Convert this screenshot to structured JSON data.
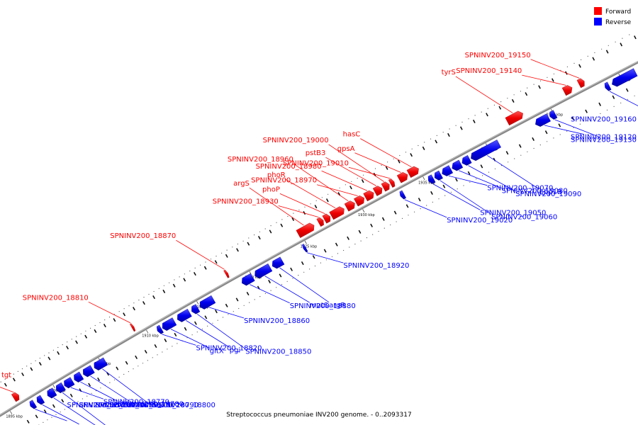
{
  "caption": "Streptococcus pneumoniae INV200 genome. - 0..2093317",
  "legend": [
    {
      "label": "Forward",
      "color": "#ff0000"
    },
    {
      "label": "Reverse",
      "color": "#0000ff"
    }
  ],
  "colors": {
    "forward": "#ff0000",
    "reverse": "#0000ff",
    "backbone": "#888888"
  },
  "position_range_kbp": [
    1893,
    1952
  ],
  "scale_labels": [
    {
      "kbp": 1895,
      "text": "1895 kbp"
    },
    {
      "kbp": 1900,
      "text": "1900 kbp"
    },
    {
      "kbp": 1905,
      "text": "1905 kbp"
    },
    {
      "kbp": 1910,
      "text": "1910 kbp"
    },
    {
      "kbp": 1915,
      "text": "1915 kbp"
    },
    {
      "kbp": 1920,
      "text": "1920 kbp"
    },
    {
      "kbp": 1925,
      "text": "1925 kbp"
    },
    {
      "kbp": 1930,
      "text": "1930 kbp"
    },
    {
      "kbp": 1935,
      "text": "1935 kbp"
    },
    {
      "kbp": 1940,
      "text": "1940 kbp"
    },
    {
      "kbp": 1945,
      "text": "1945 kbp"
    },
    {
      "kbp": 1950,
      "text": "1950 kbp"
    }
  ],
  "genes": [
    {
      "name": "tgt",
      "strand": "forward",
      "start": 1896.0,
      "end": 1896.6
    },
    {
      "name": "SPNINV200_18730",
      "strand": "reverse",
      "start": 1897.0,
      "end": 1897.5
    },
    {
      "name": "SPNINV200_18740",
      "strand": "reverse",
      "start": 1897.8,
      "end": 1898.4
    },
    {
      "name": "SPNINV200_18750",
      "strand": "reverse",
      "start": 1899.0,
      "end": 1899.8
    },
    {
      "name": "SPNINV200_18760",
      "strand": "reverse",
      "start": 1900.0,
      "end": 1900.8
    },
    {
      "name": "SPNINV200_18770",
      "strand": "reverse",
      "start": 1900.9,
      "end": 1901.8
    },
    {
      "name": "SPNINV200_18780",
      "strand": "reverse",
      "start": 1902.0,
      "end": 1902.8
    },
    {
      "name": "SPNINV200_18790",
      "strand": "reverse",
      "start": 1903.0,
      "end": 1904.0
    },
    {
      "name": "SPNINV200_18800",
      "strand": "reverse",
      "start": 1904.2,
      "end": 1905.4
    },
    {
      "name": "SPNINV200_18810",
      "strand": "forward",
      "start": 1909.0,
      "end": 1909.2
    },
    {
      "name": "SPNINV200_18820",
      "strand": "reverse",
      "start": 1910.8,
      "end": 1911.2
    },
    {
      "name": "gltX",
      "strand": "reverse",
      "start": 1911.3,
      "end": 1912.5
    },
    {
      "name": "pgi",
      "strand": "reverse",
      "start": 1912.8,
      "end": 1914.0
    },
    {
      "name": "SPNINV200_18850",
      "strand": "reverse",
      "start": 1914.2,
      "end": 1914.8
    },
    {
      "name": "SPNINV200_18860",
      "strand": "reverse",
      "start": 1915.0,
      "end": 1916.3
    },
    {
      "name": "SPNINV200_18870",
      "strand": "forward",
      "start": 1918.2,
      "end": 1918.4
    },
    {
      "name": "SPNINV200_18880",
      "strand": "reverse",
      "start": 1919.0,
      "end": 1920.0
    },
    {
      "name": "mutS",
      "strand": "reverse",
      "start": 1920.2,
      "end": 1921.6
    },
    {
      "name": "argR",
      "strand": "reverse",
      "start": 1921.8,
      "end": 1922.7
    },
    {
      "name": "SPNINV200_18920",
      "strand": "reverse",
      "start": 1924.6,
      "end": 1924.8
    },
    {
      "name": "argS",
      "strand": "forward",
      "start": 1924.8,
      "end": 1926.2
    },
    {
      "name": "SPNINV200_18930",
      "strand": "forward",
      "start": 1926.6,
      "end": 1927.0
    },
    {
      "name": "phoP",
      "strand": "forward",
      "start": 1927.1,
      "end": 1927.6
    },
    {
      "name": "phoR",
      "strand": "forward",
      "start": 1927.7,
      "end": 1928.8
    },
    {
      "name": "SPNINV200_18960",
      "strand": "forward",
      "start": 1929.0,
      "end": 1929.7
    },
    {
      "name": "SPNINV200_18970",
      "strand": "forward",
      "start": 1929.8,
      "end": 1930.5
    },
    {
      "name": "SPNINV200_18980",
      "strand": "forward",
      "start": 1930.6,
      "end": 1931.3
    },
    {
      "name": "pstB3",
      "strand": "forward",
      "start": 1931.4,
      "end": 1932.0
    },
    {
      "name": "SPNINV200_19000",
      "strand": "forward",
      "start": 1932.1,
      "end": 1932.6
    },
    {
      "name": "SPNINV200_19010",
      "strand": "forward",
      "start": 1932.7,
      "end": 1933.0
    },
    {
      "name": "SPNINV200_19020",
      "strand": "reverse",
      "start": 1932.9,
      "end": 1933.2
    },
    {
      "name": "gpsA",
      "strand": "forward",
      "start": 1933.4,
      "end": 1934.1
    },
    {
      "name": "hasC",
      "strand": "forward",
      "start": 1934.2,
      "end": 1935.0
    },
    {
      "name": "SPNINV200_19050",
      "strand": "reverse",
      "start": 1935.2,
      "end": 1935.6
    },
    {
      "name": "SPNINV200_19060",
      "strand": "reverse",
      "start": 1935.7,
      "end": 1936.2
    },
    {
      "name": "SPNINV200_19070",
      "strand": "reverse",
      "start": 1936.3,
      "end": 1937.0
    },
    {
      "name": "SPNINV200_19080",
      "strand": "reverse",
      "start": 1937.1,
      "end": 1937.8
    },
    {
      "name": "SPNINV200_19090",
      "strand": "reverse",
      "start": 1937.9,
      "end": 1938.5
    },
    {
      "name": "pbp1B",
      "strand": "reverse",
      "start": 1938.6,
      "end": 1940.8
    },
    {
      "name": "tyrS",
      "strand": "forward",
      "start": 1942.0,
      "end": 1943.2
    },
    {
      "name": "SPNINV200_19120",
      "strand": "reverse",
      "start": 1943.6,
      "end": 1944.6
    },
    {
      "name": "SPNINV200_19130",
      "strand": "reverse",
      "start": 1944.7,
      "end": 1945.1
    },
    {
      "name": "SPNINV200_19140",
      "strand": "forward",
      "start": 1946.3,
      "end": 1946.9
    },
    {
      "name": "SPNINV200_19150",
      "strand": "forward",
      "start": 1947.4,
      "end": 1947.8
    },
    {
      "name": "SPNINV200_19160",
      "strand": "reverse",
      "start": 1948.8,
      "end": 1949.1
    },
    {
      "name": "",
      "strand": "reverse",
      "start": 1949.3,
      "end": 1951.0
    }
  ]
}
